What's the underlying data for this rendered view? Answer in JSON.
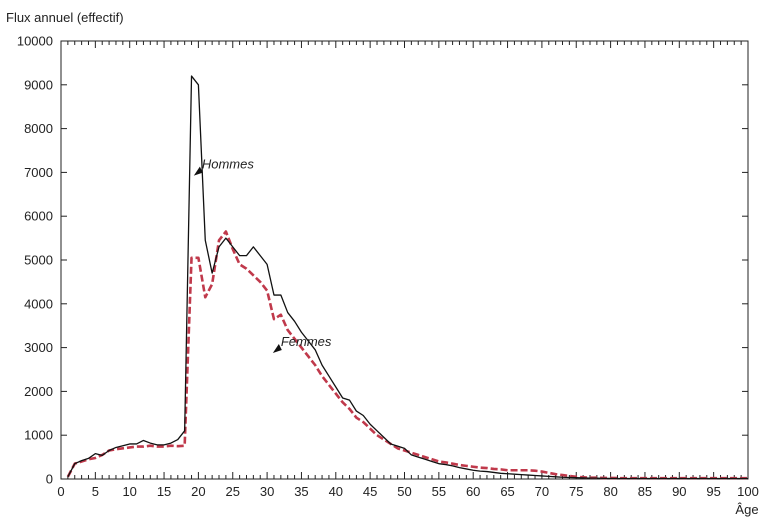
{
  "chart_data": {
    "type": "line",
    "ylabel": "Flux annuel (effectif)",
    "xlabel": "Âge",
    "xlim": [
      0,
      100
    ],
    "ylim": [
      0,
      10000
    ],
    "xticks": [
      0,
      5,
      10,
      15,
      20,
      25,
      30,
      35,
      40,
      45,
      50,
      55,
      60,
      65,
      70,
      75,
      80,
      85,
      90,
      95,
      100
    ],
    "yticks": [
      0,
      1000,
      2000,
      3000,
      4000,
      5000,
      6000,
      7000,
      8000,
      9000,
      10000
    ],
    "grid": false,
    "series": [
      {
        "name": "Hommes",
        "color": "#111111",
        "style": "solid",
        "x": [
          1,
          2,
          3,
          4,
          5,
          6,
          7,
          8,
          9,
          10,
          11,
          12,
          13,
          14,
          15,
          16,
          17,
          18,
          19,
          20,
          21,
          22,
          23,
          24,
          25,
          26,
          27,
          28,
          29,
          30,
          31,
          32,
          33,
          34,
          35,
          36,
          37,
          38,
          39,
          40,
          41,
          42,
          43,
          44,
          45,
          46,
          47,
          48,
          49,
          50,
          51,
          52,
          53,
          54,
          55,
          56,
          57,
          58,
          59,
          60,
          61,
          62,
          63,
          64,
          65,
          66,
          67,
          68,
          69,
          70,
          71,
          72,
          73,
          74,
          75,
          76,
          77,
          78,
          79,
          80,
          81,
          82,
          83,
          84,
          85,
          86,
          87,
          88,
          89,
          90,
          91,
          92,
          93,
          94,
          95,
          96,
          97,
          98,
          99,
          100
        ],
        "values": [
          50,
          350,
          420,
          470,
          580,
          540,
          650,
          720,
          760,
          800,
          800,
          880,
          820,
          780,
          780,
          820,
          900,
          1100,
          9200,
          9000,
          5450,
          4700,
          5300,
          5500,
          5300,
          5100,
          5100,
          5300,
          5100,
          4900,
          4200,
          4200,
          3800,
          3600,
          3350,
          3150,
          2950,
          2600,
          2350,
          2100,
          1850,
          1800,
          1550,
          1450,
          1250,
          1100,
          950,
          800,
          750,
          700,
          550,
          500,
          450,
          400,
          350,
          330,
          300,
          260,
          230,
          200,
          180,
          170,
          150,
          130,
          120,
          110,
          100,
          90,
          80,
          70,
          60,
          50,
          40,
          35,
          30,
          25,
          20,
          20,
          15,
          15,
          10,
          10,
          10,
          10,
          10,
          10,
          10,
          10,
          10,
          10,
          10,
          10,
          10,
          10,
          10,
          10,
          10,
          10,
          10,
          10
        ]
      },
      {
        "name": "Femmes",
        "color": "#c0394b",
        "style": "dashed",
        "x": [
          1,
          2,
          3,
          4,
          5,
          6,
          7,
          8,
          9,
          10,
          11,
          12,
          13,
          14,
          15,
          16,
          17,
          18,
          19,
          20,
          21,
          22,
          23,
          24,
          25,
          26,
          27,
          28,
          29,
          30,
          31,
          32,
          33,
          34,
          35,
          36,
          37,
          38,
          39,
          40,
          41,
          42,
          43,
          44,
          45,
          46,
          47,
          48,
          49,
          50,
          51,
          52,
          53,
          54,
          55,
          56,
          57,
          58,
          59,
          60,
          61,
          62,
          63,
          64,
          65,
          66,
          67,
          68,
          69,
          70,
          71,
          72,
          73,
          74,
          75,
          76,
          77,
          78,
          79,
          80,
          81,
          82,
          83,
          84,
          85,
          86,
          87,
          88,
          89,
          90,
          91,
          92,
          93,
          94,
          95,
          96,
          97,
          98,
          99,
          100
        ],
        "values": [
          50,
          350,
          400,
          450,
          480,
          550,
          650,
          680,
          700,
          720,
          740,
          740,
          760,
          740,
          740,
          760,
          750,
          760,
          5050,
          5050,
          4150,
          4450,
          5450,
          5650,
          5250,
          4900,
          4800,
          4650,
          4500,
          4300,
          3650,
          3750,
          3400,
          3200,
          3000,
          2800,
          2600,
          2350,
          2150,
          1950,
          1750,
          1600,
          1400,
          1300,
          1150,
          1000,
          900,
          800,
          700,
          650,
          600,
          550,
          500,
          450,
          400,
          380,
          350,
          320,
          300,
          280,
          260,
          250,
          230,
          220,
          200,
          200,
          200,
          200,
          190,
          170,
          140,
          110,
          90,
          70,
          50,
          40,
          30,
          30,
          25,
          25,
          20,
          20,
          20,
          20,
          20,
          20,
          20,
          20,
          20,
          20,
          20,
          20,
          20,
          20,
          20,
          20,
          20,
          20,
          20,
          20
        ]
      }
    ],
    "annotations": [
      {
        "text": "Hommes",
        "x": 20.5,
        "y": 7200
      },
      {
        "text": "Femmes",
        "x": 32,
        "y": 3150
      }
    ]
  }
}
